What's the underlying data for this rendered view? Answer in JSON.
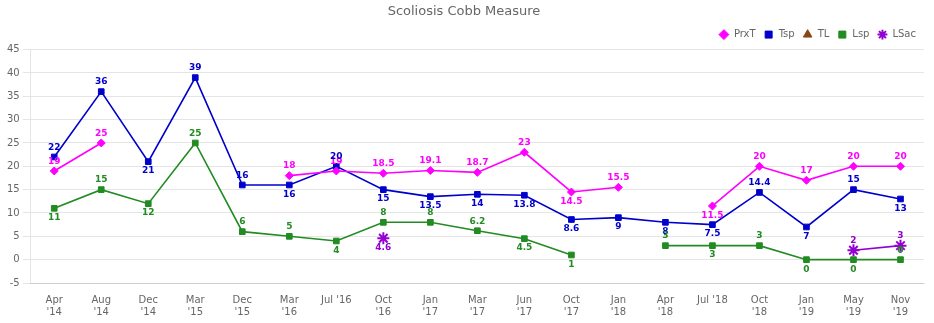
{
  "chart_data": {
    "type": "line",
    "title": "Scoliosis Cobb Measure",
    "categories": [
      "Apr\n'14",
      "Aug\n'14",
      "Dec\n'14",
      "Mar\n'15",
      "Dec\n'15",
      "Mar\n'16",
      "Jul '16",
      "Oct\n'16",
      "Jan\n'17",
      "Mar\n'17",
      "Jun\n'17",
      "Oct\n'17",
      "Jan\n'18",
      "Apr\n'18",
      "Jul '18",
      "Oct\n'18",
      "Jan\n'19",
      "May\n'19",
      "Nov\n'19"
    ],
    "series": [
      {
        "name": "PrxT",
        "color": "#FF00FF",
        "marker": "diamond",
        "values": [
          19,
          25,
          null,
          null,
          null,
          18,
          19,
          18.5,
          19.1,
          18.7,
          23,
          14.5,
          15.5,
          null,
          11.5,
          20,
          17,
          20,
          20
        ]
      },
      {
        "name": "Tsp",
        "color": "#0000CD",
        "marker": "square",
        "values": [
          22,
          36,
          21,
          39,
          16,
          16,
          20,
          15,
          13.5,
          14,
          13.8,
          8.6,
          9,
          8,
          7.5,
          14.4,
          7,
          15,
          13
        ]
      },
      {
        "name": "TL",
        "color": "#8B4513",
        "marker": "triangle",
        "values": [
          null,
          null,
          null,
          null,
          null,
          null,
          null,
          null,
          null,
          null,
          null,
          null,
          null,
          null,
          null,
          null,
          null,
          null,
          null
        ]
      },
      {
        "name": "Lsp",
        "color": "#228B22",
        "marker": "square",
        "values": [
          11,
          15,
          12,
          25,
          6,
          5,
          4,
          8,
          8,
          6.2,
          4.5,
          1,
          null,
          3,
          3,
          3,
          0,
          0,
          0
        ]
      },
      {
        "name": "LSac",
        "color": "#9400D3",
        "marker": "star",
        "values": [
          null,
          null,
          null,
          null,
          null,
          null,
          null,
          4.6,
          null,
          null,
          null,
          null,
          null,
          null,
          null,
          null,
          null,
          2,
          3
        ]
      }
    ],
    "ylim": [
      -5,
      45
    ],
    "yticks": [
      -5,
      0,
      5,
      10,
      15,
      20,
      25,
      30,
      35,
      40,
      45
    ],
    "grid": "y",
    "legend": "upper right",
    "data_labels": true
  }
}
